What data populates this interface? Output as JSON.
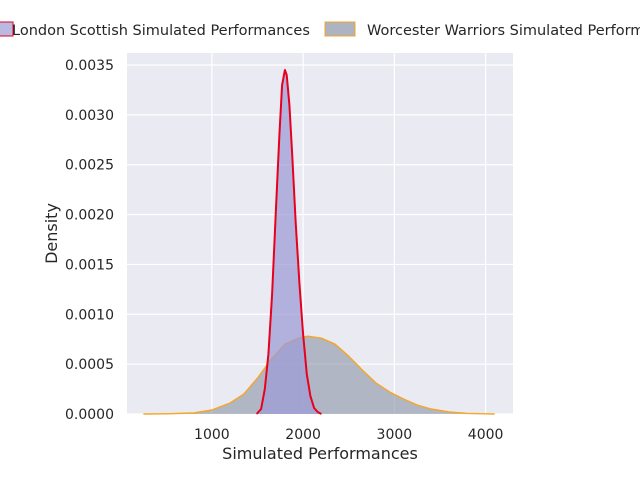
{
  "chart_data": {
    "type": "area",
    "title": "",
    "xlabel": "Simulated Performances",
    "ylabel": "Density",
    "xlim": [
      70,
      4300
    ],
    "ylim": [
      0,
      0.0035
    ],
    "x_ticks": [
      1000,
      2000,
      3000,
      4000
    ],
    "y_ticks": [
      0.0,
      0.0005,
      0.001,
      0.0015,
      0.002,
      0.0025,
      0.003,
      0.0035
    ],
    "x_tick_labels": [
      "1000",
      "2000",
      "3000",
      "4000"
    ],
    "y_tick_labels": [
      "0.0000",
      "0.0005",
      "0.0010",
      "0.0015",
      "0.0020",
      "0.0025",
      "0.0030",
      "0.0035"
    ],
    "grid": true,
    "legend_position": "top",
    "series": [
      {
        "name": "London Scottish Simulated Performances",
        "fill_color": "#9d9bd6",
        "line_color": "#e8001c",
        "x": [
          1490,
          1540,
          1580,
          1620,
          1660,
          1700,
          1740,
          1770,
          1800,
          1820,
          1850,
          1880,
          1920,
          1960,
          2000,
          2040,
          2080,
          2120,
          2160,
          2200
        ],
        "y": [
          0.0,
          5e-05,
          0.00025,
          0.0006,
          0.0012,
          0.002,
          0.0028,
          0.0033,
          0.00345,
          0.0034,
          0.0031,
          0.0026,
          0.0019,
          0.0013,
          0.0008,
          0.0004,
          0.00018,
          6e-05,
          2e-05,
          0.0
        ]
      },
      {
        "name": "Worcester Warriors Simulated Performances",
        "fill_color": "#8a93a6",
        "line_color": "#f5a623",
        "x": [
          250,
          500,
          800,
          1000,
          1200,
          1350,
          1500,
          1650,
          1800,
          1950,
          2050,
          2200,
          2350,
          2500,
          2650,
          2800,
          2950,
          3100,
          3250,
          3400,
          3600,
          3800,
          4000,
          4100
        ],
        "y": [
          0.0,
          2e-06,
          1e-05,
          4e-05,
          0.00011,
          0.0002,
          0.00036,
          0.00055,
          0.0007,
          0.00076,
          0.00078,
          0.00076,
          0.0007,
          0.00058,
          0.00044,
          0.00031,
          0.00022,
          0.00015,
          9e-05,
          5e-05,
          2e-05,
          6e-06,
          2e-06,
          0.0
        ]
      }
    ]
  }
}
